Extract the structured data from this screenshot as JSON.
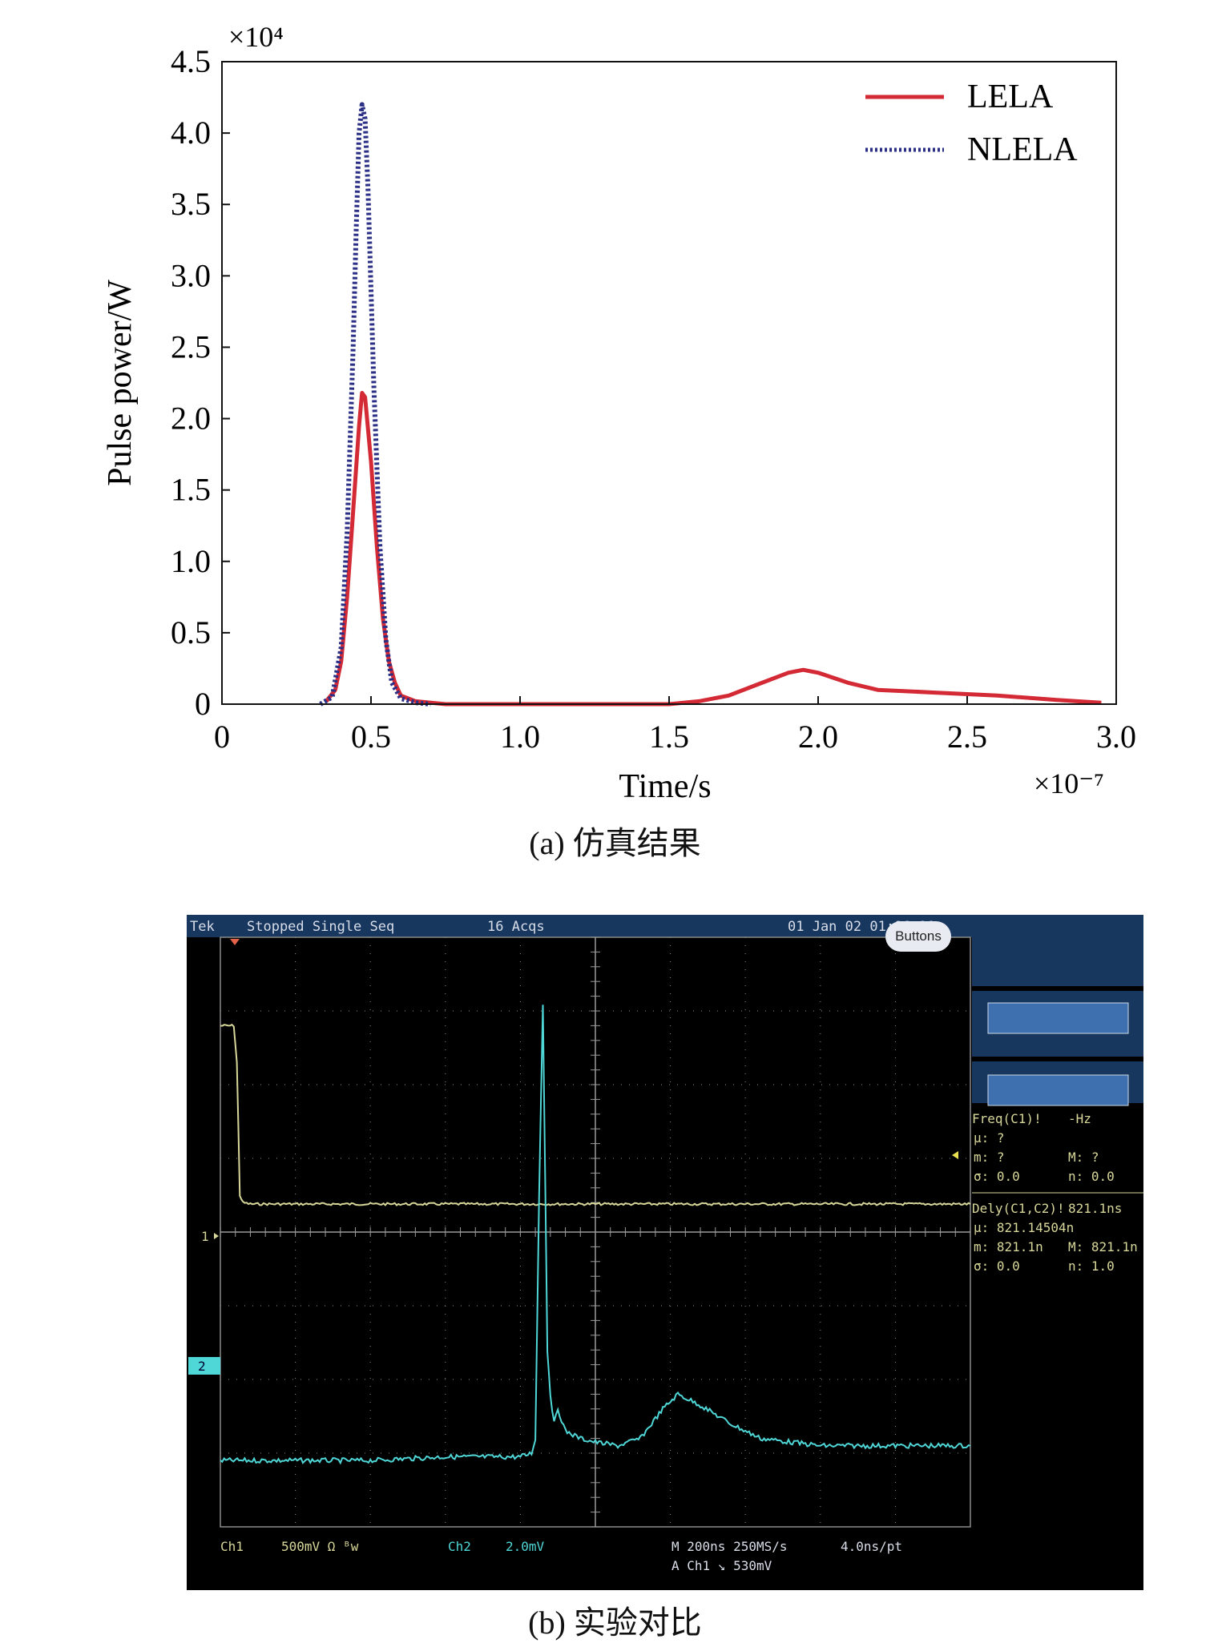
{
  "chart_data": [
    {
      "type": "line",
      "panel_caption": "(a) 仿真结果",
      "xlabel": "Time/s",
      "ylabel": "Pulse power/W",
      "x_multiplier": "×10⁻⁷",
      "y_multiplier": "×10⁴",
      "xlim": [
        0,
        3.0
      ],
      "ylim": [
        0,
        4.5
      ],
      "x_ticks": [
        "0",
        "0.5",
        "1.0",
        "1.5",
        "2.0",
        "2.5",
        "3.0"
      ],
      "y_ticks": [
        "0",
        "0.5",
        "1.0",
        "1.5",
        "2.0",
        "2.5",
        "3.0",
        "3.5",
        "4.0",
        "4.5"
      ],
      "legend_position": "top-right",
      "series": [
        {
          "name": "LELA",
          "color": "#d42a35",
          "style": "solid",
          "x": [
            0.35,
            0.38,
            0.4,
            0.42,
            0.44,
            0.46,
            0.47,
            0.48,
            0.5,
            0.52,
            0.54,
            0.56,
            0.58,
            0.6,
            0.65,
            0.75,
            1.0,
            1.5,
            1.6,
            1.7,
            1.8,
            1.9,
            1.95,
            2.0,
            2.1,
            2.2,
            2.4,
            2.6,
            2.8,
            2.95
          ],
          "y": [
            0.02,
            0.1,
            0.3,
            0.75,
            1.35,
            1.95,
            2.18,
            2.15,
            1.7,
            1.1,
            0.6,
            0.3,
            0.15,
            0.06,
            0.02,
            0.0,
            0.0,
            0.0,
            0.02,
            0.06,
            0.14,
            0.22,
            0.24,
            0.22,
            0.15,
            0.1,
            0.08,
            0.06,
            0.03,
            0.01
          ]
        },
        {
          "name": "NLELA",
          "color": "#2b2f86",
          "style": "dotted",
          "x": [
            0.33,
            0.37,
            0.4,
            0.42,
            0.44,
            0.45,
            0.46,
            0.47,
            0.48,
            0.49,
            0.5,
            0.51,
            0.53,
            0.55,
            0.57,
            0.6,
            0.65,
            0.7
          ],
          "y": [
            0.0,
            0.05,
            0.4,
            1.2,
            2.5,
            3.3,
            4.0,
            4.2,
            4.1,
            3.6,
            2.9,
            2.2,
            1.1,
            0.45,
            0.15,
            0.04,
            0.01,
            0.0
          ]
        }
      ]
    },
    {
      "type": "line",
      "panel_caption": "(b) 实验对比",
      "scope": {
        "brand": "Tek",
        "status": "Stopped  Single Seq",
        "acqs": "16 Acqs",
        "datetime": "01 Jan 02 01:06:21",
        "buttons_label": "Buttons",
        "ch1_marker": "1",
        "ch2_marker": "2",
        "meas_freq": [
          "Freq(C1)!",
          "-Hz",
          "μ: ?",
          "m: ?",
          "M: ?",
          "σ: 0.0",
          "n: 0.0"
        ],
        "meas_dely": [
          "Dely(C1,C2)!",
          "821.1ns",
          "μ: 821.14504n",
          "m: 821.1n",
          "M: 821.1n",
          "σ: 0.0",
          "n: 1.0"
        ],
        "bottom": [
          "Ch1",
          "500mV  Ω ᴮw",
          "Ch2",
          "2.0mV",
          "M 200ns 250MS/s",
          "4.0ns/pt",
          "A  Ch1  ↘  530mV"
        ],
        "colors": {
          "ch1": "#d8d79a",
          "ch2": "#4fd6d6",
          "panel": "#17375f",
          "grid": "#8a8a8a"
        }
      },
      "divisions": {
        "x": 10,
        "y": 8
      },
      "series": [
        {
          "trace": "ch1",
          "x_div": [
            0.0,
            0.18,
            0.22,
            0.26,
            0.3,
            0.4,
            1.0,
            3.0,
            5.0,
            7.0,
            9.0,
            10.0
          ],
          "y_div": [
            2.8,
            2.8,
            2.3,
            0.5,
            0.4,
            0.38,
            0.38,
            0.38,
            0.38,
            0.38,
            0.38,
            0.38
          ]
        },
        {
          "trace": "ch2",
          "x_div": [
            0.0,
            1.0,
            2.0,
            3.0,
            4.0,
            4.15,
            4.2,
            4.25,
            4.3,
            4.33,
            4.36,
            4.4,
            4.45,
            4.5,
            4.6,
            4.8,
            5.0,
            5.3,
            5.6,
            5.9,
            6.1,
            6.4,
            6.8,
            7.2,
            7.6,
            8.0,
            9.0,
            10.0
          ],
          "y_div": [
            -3.1,
            -3.1,
            -3.1,
            -3.05,
            -3.05,
            -3.0,
            -2.8,
            0.5,
            3.1,
            0.8,
            -1.6,
            -2.2,
            -2.6,
            -2.4,
            -2.7,
            -2.8,
            -2.85,
            -2.9,
            -2.8,
            -2.4,
            -2.2,
            -2.35,
            -2.6,
            -2.8,
            -2.85,
            -2.9,
            -2.9,
            -2.9
          ]
        }
      ]
    }
  ]
}
